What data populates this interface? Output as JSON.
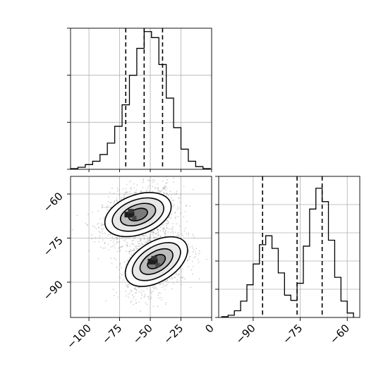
{
  "chart_data": [
    {
      "type": "histogram",
      "panel": "marginal-x",
      "x": [
        -112,
        -106,
        -100,
        -94,
        -88,
        -82,
        -76,
        -70,
        -64,
        -58,
        -52,
        -46,
        -40,
        -34,
        -28,
        -22,
        -16,
        -10,
        -4
      ],
      "counts": [
        1,
        3,
        7,
        12,
        22,
        39,
        64,
        96,
        140,
        180,
        205,
        196,
        156,
        106,
        62,
        30,
        12,
        4,
        1
      ],
      "xlim": [
        -115,
        0
      ],
      "ylim": [
        0,
        210
      ],
      "yticks": [
        0,
        70,
        140,
        210
      ],
      "quantiles": [
        -70,
        -55,
        -40
      ],
      "grid": true
    },
    {
      "type": "histogram",
      "panel": "marginal-y",
      "x": [
        -99,
        -97,
        -95,
        -93,
        -91,
        -89,
        -87,
        -85,
        -83,
        -81,
        -79,
        -77,
        -75,
        -73,
        -71,
        -69,
        -67,
        -65,
        -63,
        -61,
        -59
      ],
      "counts": [
        1,
        3,
        9,
        22,
        44,
        72,
        98,
        110,
        93,
        60,
        30,
        23,
        46,
        96,
        146,
        174,
        156,
        104,
        54,
        22,
        6
      ],
      "xlim": [
        -101,
        -56
      ],
      "ylim": [
        0,
        190
      ],
      "yticks": [
        0,
        38,
        76,
        114,
        152,
        190
      ],
      "xticks": [
        -90,
        -75,
        -60
      ],
      "quantiles": [
        -87,
        -76,
        -68
      ],
      "grid": true
    },
    {
      "type": "scatter",
      "panel": "joint",
      "xlim": [
        -115,
        0
      ],
      "ylim": [
        -102,
        -54
      ],
      "xticks": [
        -100,
        -75,
        -50,
        -25,
        0
      ],
      "yticks": [
        -60,
        -75,
        -90
      ],
      "grid": true,
      "clusters": [
        {
          "center": [
            -60,
            -67
          ],
          "spread": [
            15,
            4.5
          ]
        },
        {
          "center": [
            -45,
            -83
          ],
          "spread": [
            13,
            5
          ]
        }
      ],
      "density_peaks": [
        [
          -67,
          -67
        ],
        [
          -48,
          -83
        ]
      ]
    }
  ]
}
